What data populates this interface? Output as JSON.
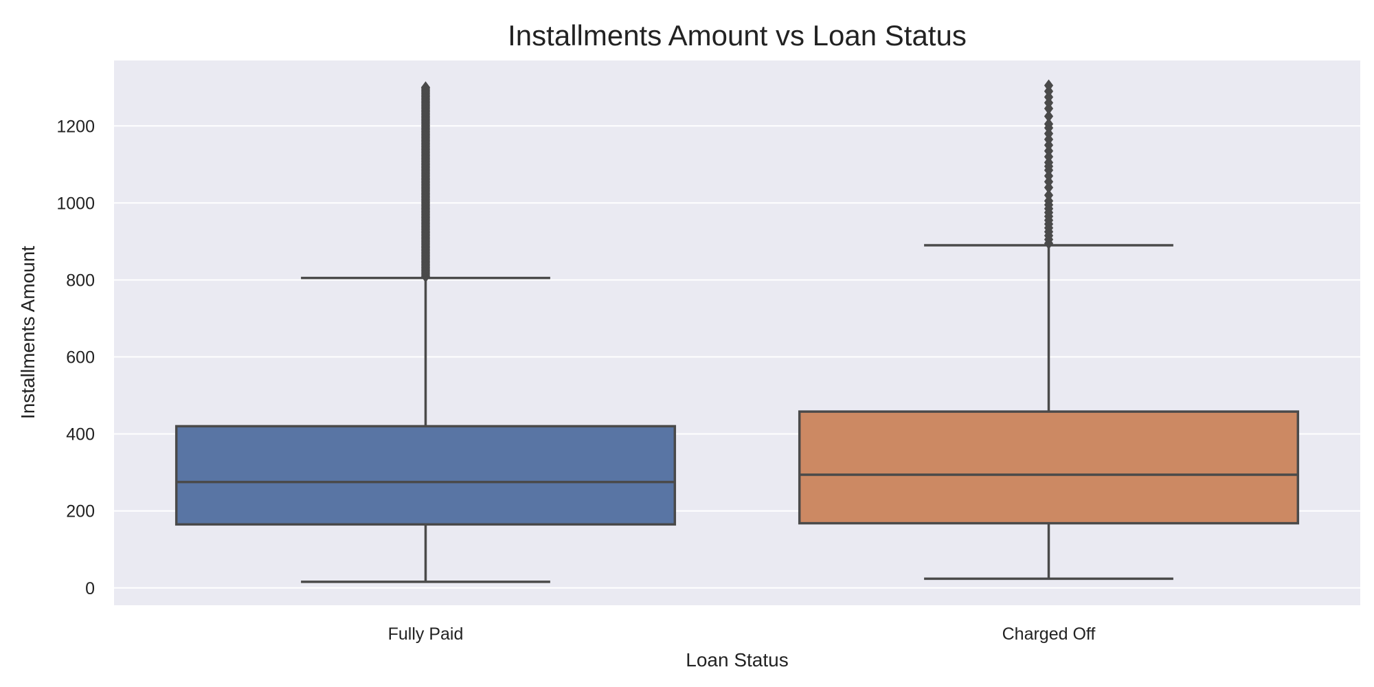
{
  "chart_data": {
    "type": "box",
    "title": "Installments Amount vs Loan Status",
    "xlabel": "Loan Status",
    "ylabel": "Installments Amount",
    "ylim": [
      -45,
      1370
    ],
    "yticks": [
      0,
      200,
      400,
      600,
      800,
      1000,
      1200
    ],
    "grid": true,
    "categories": [
      "Fully Paid",
      "Charged Off"
    ],
    "series": [
      {
        "category": "Fully Paid",
        "color": "#5975a4",
        "whisker_low": 16,
        "q1": 165,
        "median": 275,
        "q3": 420,
        "whisker_high": 805,
        "outlier_range": [
          805,
          1300
        ]
      },
      {
        "category": "Charged Off",
        "color": "#cc8963",
        "whisker_low": 24,
        "q1": 168,
        "median": 294,
        "q3": 458,
        "whisker_high": 890,
        "outliers": [
          895,
          905,
          915,
          925,
          935,
          945,
          955,
          965,
          975,
          985,
          995,
          1005,
          1020,
          1040,
          1055,
          1070,
          1085,
          1095,
          1105,
          1120,
          1135,
          1150,
          1165,
          1180,
          1195,
          1205,
          1225,
          1245,
          1260,
          1275,
          1290,
          1305
        ]
      }
    ],
    "colors": {
      "plot_bg": "#eaeaf2",
      "grid": "#ffffff",
      "line": "#4a4a4a"
    }
  }
}
